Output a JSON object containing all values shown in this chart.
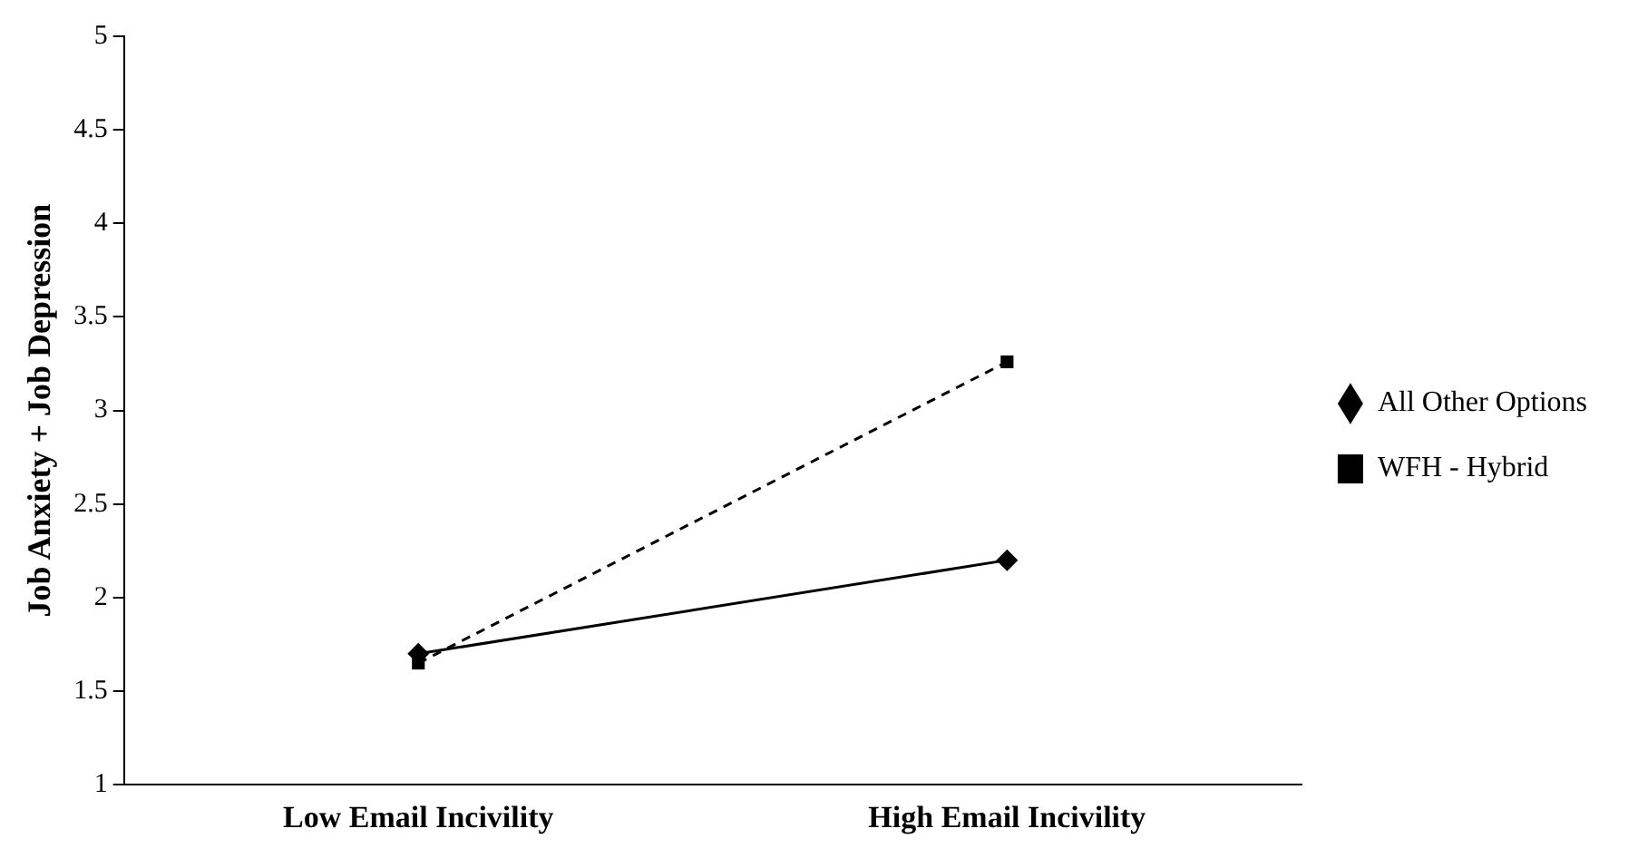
{
  "chart_data": {
    "type": "line",
    "ylabel": "Job Anxiety + Job Depression",
    "categories": [
      "Low Email Incivility",
      "High Email Incivility"
    ],
    "series": [
      {
        "name": "All Other Options",
        "color": "#000000",
        "values": [
          1.7,
          2.2
        ],
        "marker": "diamond",
        "line_style": "solid"
      },
      {
        "name": "WFH - Hybrid",
        "color": "#000000",
        "values": [
          1.65,
          3.26
        ],
        "marker": "square",
        "line_style": "dashed"
      }
    ],
    "ylim": [
      1,
      5
    ],
    "yticks": [
      1,
      1.5,
      2,
      2.5,
      3,
      3.5,
      4,
      4.5,
      5
    ],
    "grid": false,
    "legend": "right"
  }
}
